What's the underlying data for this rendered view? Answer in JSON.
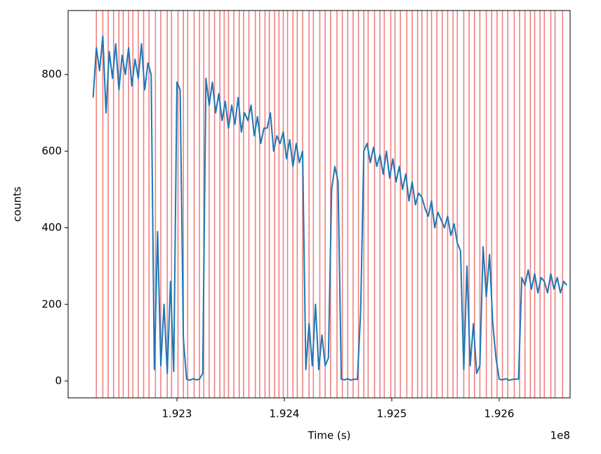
{
  "chart_data": {
    "type": "line",
    "xlabel": "Time (s)",
    "ylabel": "counts",
    "x_offset_label": "1e8",
    "color": "#1f77b4",
    "x": [
      192222000,
      192225000,
      192228000,
      192231000,
      192234000,
      192237000,
      192240000,
      192243000,
      192246000,
      192249000,
      192252000,
      192255000,
      192258000,
      192261000,
      192264000,
      192267000,
      192270000,
      192273000,
      192276000,
      192279000,
      192282000,
      192285000,
      192288000,
      192291000,
      192294000,
      192297000,
      192300000,
      192303000,
      192306000,
      192309000,
      192312000,
      192315000,
      192318000,
      192321000,
      192324000,
      192327000,
      192330000,
      192333000,
      192336000,
      192339000,
      192342000,
      192345000,
      192348000,
      192351000,
      192354000,
      192357000,
      192360000,
      192363000,
      192366000,
      192369000,
      192372000,
      192375000,
      192378000,
      192381000,
      192384000,
      192387000,
      192390000,
      192393000,
      192396000,
      192399000,
      192402000,
      192405000,
      192408000,
      192411000,
      192414000,
      192417000,
      192420000,
      192423000,
      192426000,
      192429000,
      192432000,
      192435000,
      192438000,
      192441000,
      192444000,
      192447000,
      192450000,
      192453000,
      192456000,
      192459000,
      192462000,
      192465000,
      192468000,
      192471000,
      192474000,
      192477000,
      192480000,
      192483000,
      192486000,
      192489000,
      192492000,
      192495000,
      192498000,
      192501000,
      192504000,
      192507000,
      192510000,
      192513000,
      192516000,
      192519000,
      192522000,
      192525000,
      192528000,
      192531000,
      192534000,
      192537000,
      192540000,
      192543000,
      192546000,
      192549000,
      192552000,
      192555000,
      192558000,
      192561000,
      192564000,
      192567000,
      192570000,
      192573000,
      192576000,
      192579000,
      192582000,
      192585000,
      192588000,
      192591000,
      192594000,
      192597000,
      192600000,
      192603000,
      192606000,
      192609000,
      192612000,
      192615000,
      192618000,
      192621000,
      192624000,
      192627000,
      192630000,
      192633000,
      192636000,
      192639000,
      192642000,
      192645000,
      192648000,
      192651000,
      192654000,
      192657000,
      192660000,
      192663000
    ],
    "values": [
      740,
      870,
      810,
      900,
      700,
      860,
      790,
      880,
      760,
      850,
      800,
      870,
      770,
      840,
      790,
      880,
      760,
      830,
      800,
      30,
      390,
      40,
      200,
      20,
      260,
      25,
      780,
      760,
      110,
      5,
      2,
      6,
      3,
      5,
      20,
      790,
      720,
      780,
      700,
      750,
      680,
      730,
      660,
      720,
      670,
      740,
      650,
      700,
      680,
      720,
      640,
      690,
      620,
      660,
      660,
      700,
      600,
      640,
      620,
      650,
      580,
      630,
      560,
      620,
      570,
      600,
      30,
      150,
      40,
      200,
      30,
      120,
      40,
      60,
      500,
      560,
      520,
      5,
      3,
      6,
      2,
      5,
      4,
      180,
      600,
      620,
      570,
      610,
      560,
      590,
      540,
      600,
      530,
      580,
      520,
      560,
      500,
      540,
      470,
      520,
      460,
      490,
      480,
      450,
      430,
      470,
      400,
      440,
      420,
      400,
      430,
      380,
      410,
      360,
      340,
      30,
      300,
      40,
      150,
      20,
      40,
      350,
      220,
      330,
      150,
      60,
      5,
      3,
      6,
      2,
      4,
      5,
      5,
      270,
      250,
      290,
      240,
      280,
      230,
      270,
      260,
      230,
      280,
      240,
      270,
      230,
      260,
      250
    ],
    "vlines": {
      "color": "#f08080",
      "x": [
        192225000,
        192231000,
        192236000,
        192241000,
        192246000,
        192250000,
        192255000,
        192259000,
        192264000,
        192269000,
        192274000,
        192280000,
        192285000,
        192291000,
        192295000,
        192301000,
        192306000,
        192310000,
        192316000,
        192321000,
        192325000,
        192330000,
        192335000,
        192340000,
        192344000,
        192348000,
        192353000,
        192358000,
        192362000,
        192367000,
        192373000,
        192377000,
        192382000,
        192386000,
        192391000,
        192395000,
        192399000,
        192403000,
        192408000,
        192412000,
        192417000,
        192423000,
        192427000,
        192433000,
        192438000,
        192443000,
        192449000,
        192454000,
        192459000,
        192464000,
        192469000,
        192474000,
        192478000,
        192484000,
        192489000,
        192493000,
        192499000,
        192503000,
        192508000,
        192514000,
        192519000,
        192524000,
        192528000,
        192533000,
        192537000,
        192542000,
        192547000,
        192552000,
        192557000,
        192561000,
        192567000,
        192572000,
        192577000,
        192582000,
        192588000,
        192593000,
        192598000,
        192603000,
        192608000,
        192614000,
        192619000,
        192624000,
        192629000,
        192633000,
        192638000,
        192642000,
        192648000,
        192652000,
        192659000
      ]
    },
    "xlim": [
      192198700,
      192666000
    ],
    "xticks": [
      {
        "value": 192300000,
        "label": "1.923"
      },
      {
        "value": 192400000,
        "label": "1.924"
      },
      {
        "value": 192500000,
        "label": "1.925"
      },
      {
        "value": 192600000,
        "label": "1.926"
      }
    ],
    "ylim": [
      -44,
      967
    ],
    "yticks": [
      0,
      200,
      400,
      600,
      800
    ]
  }
}
